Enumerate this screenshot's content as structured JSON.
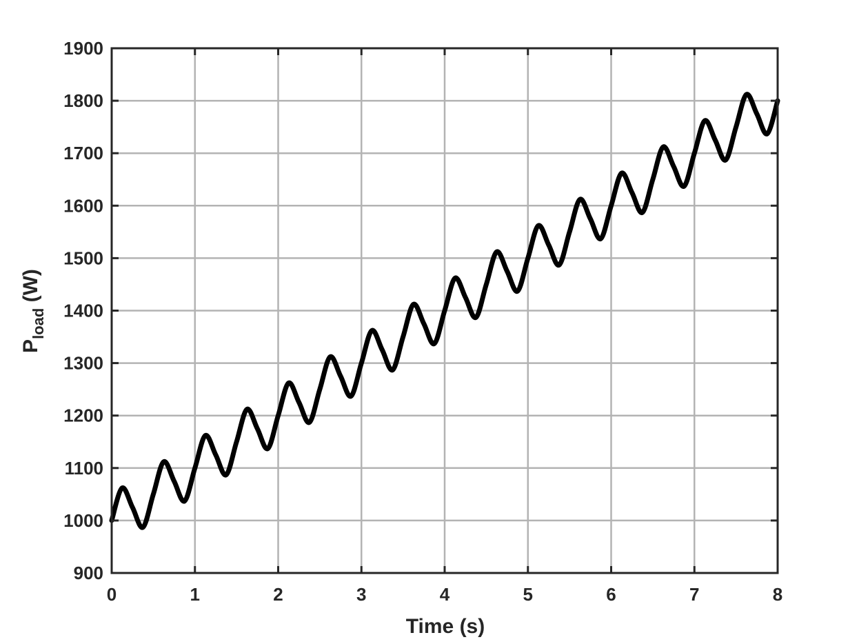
{
  "chart_data": {
    "type": "line",
    "title": "",
    "xlabel": "Time (s)",
    "ylabel": {
      "main": "P",
      "subscript": "load",
      "unit": " (W)"
    },
    "xlim": [
      0,
      8
    ],
    "ylim": [
      900,
      1900
    ],
    "xticks": [
      0,
      1,
      2,
      3,
      4,
      5,
      6,
      7,
      8
    ],
    "yticks": [
      900,
      1000,
      1100,
      1200,
      1300,
      1400,
      1500,
      1600,
      1700,
      1800,
      1900
    ],
    "grid": true,
    "legend": "none",
    "series": [
      {
        "color": "#000000",
        "x": [
          0,
          0.125,
          0.25,
          0.375,
          0.5,
          0.625,
          0.75,
          0.875,
          1,
          1.125,
          1.25,
          1.375,
          1.5,
          1.625,
          1.75,
          1.875,
          2,
          2.125,
          2.25,
          2.375,
          2.5,
          2.625,
          2.75,
          2.875,
          3,
          3.125,
          3.25,
          3.375,
          3.5,
          3.625,
          3.75,
          3.875,
          4,
          4.125,
          4.25,
          4.375,
          4.5,
          4.625,
          4.75,
          4.875,
          5,
          5.125,
          5.25,
          5.375,
          5.5,
          5.625,
          5.75,
          5.875,
          6,
          6.125,
          6.25,
          6.375,
          6.5,
          6.625,
          6.75,
          6.875,
          7,
          7.125,
          7.25,
          7.375,
          7.5,
          7.625,
          7.75,
          7.875,
          8
        ],
        "y": [
          1000,
          1062,
          1025,
          987,
          1050,
          1112,
          1075,
          1037,
          1100,
          1162,
          1125,
          1087,
          1150,
          1212,
          1175,
          1137,
          1200,
          1262,
          1225,
          1187,
          1250,
          1312,
          1275,
          1237,
          1300,
          1362,
          1325,
          1287,
          1350,
          1412,
          1375,
          1337,
          1400,
          1462,
          1425,
          1387,
          1450,
          1512,
          1475,
          1437,
          1500,
          1562,
          1525,
          1487,
          1550,
          1612,
          1575,
          1537,
          1600,
          1662,
          1625,
          1587,
          1650,
          1712,
          1675,
          1637,
          1700,
          1762,
          1725,
          1687,
          1750,
          1812,
          1775,
          1737,
          1800
        ]
      }
    ]
  }
}
